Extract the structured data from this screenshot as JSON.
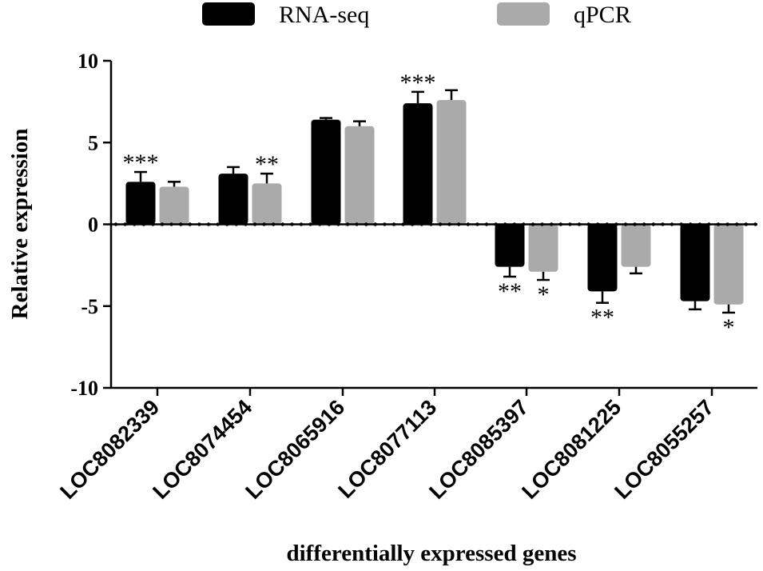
{
  "chart_data": {
    "type": "bar",
    "title": "",
    "xlabel": "differentially expressed genes",
    "ylabel": "Relative expression",
    "ylim": [
      -10,
      10
    ],
    "yticks": [
      "10",
      "5",
      "0",
      "-5",
      "-10"
    ],
    "legend_position": "top",
    "categories": [
      "LOC8082339",
      "LOC8074454",
      "LOC8065916",
      "LOC8077113",
      "LOC8085397",
      "LOC8081225",
      "LOC8055257"
    ],
    "series": [
      {
        "name": "RNA-seq",
        "color": "#000000",
        "values": [
          2.6,
          3.1,
          6.4,
          7.4,
          -2.6,
          -4.1,
          -4.7
        ],
        "errors": [
          0.6,
          0.4,
          0.1,
          0.7,
          0.6,
          0.7,
          0.5
        ],
        "significance": [
          "***",
          "",
          "",
          "***",
          "**",
          "**",
          ""
        ]
      },
      {
        "name": "qPCR",
        "color": "#aaaaaa",
        "values": [
          2.3,
          2.5,
          6.0,
          7.6,
          -2.9,
          -2.6,
          -4.9
        ],
        "errors": [
          0.3,
          0.6,
          0.3,
          0.6,
          0.5,
          0.4,
          0.5
        ],
        "significance": [
          "",
          "**",
          "",
          "",
          "*",
          "",
          "*"
        ]
      }
    ]
  }
}
